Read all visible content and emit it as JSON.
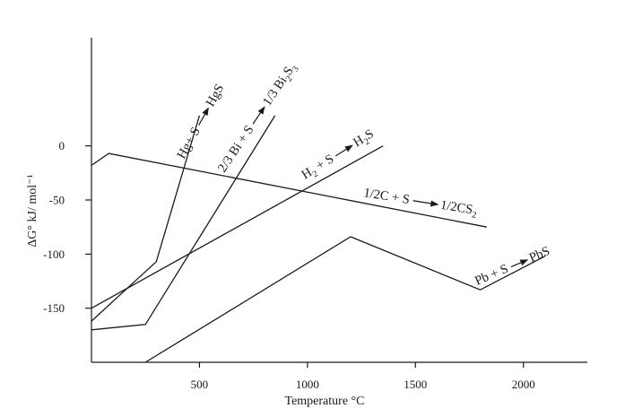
{
  "chart_data": {
    "type": "line",
    "xlabel": "Temperature °C",
    "ylabel": "ΔG° kJ/ mol⁻¹",
    "xlim": [
      0,
      2300
    ],
    "ylim": [
      -200,
      100
    ],
    "x_ticks": [
      500,
      1000,
      1500,
      2000
    ],
    "x_tick_labels": [
      "500",
      "1000",
      "1500",
      "2000"
    ],
    "y_ticks": [
      0,
      -50,
      -100,
      -150
    ],
    "y_tick_labels": [
      "0",
      "-50",
      "-100",
      "-150"
    ],
    "grid": false,
    "legend": "none",
    "series": [
      {
        "name": "Hg+ S → HgS",
        "label_parts": [
          [
            "Hg+ S",
            ""
          ],
          [
            "HgS",
            ""
          ]
        ],
        "points": [
          [
            0,
            -162
          ],
          [
            300,
            -107
          ],
          [
            500,
            28
          ]
        ]
      },
      {
        "name": "2/3 Bi + S → 1/3 Bi₂S₃",
        "label_parts": [
          [
            "2/3 Bi + S",
            ""
          ],
          [
            "1/3 Bi",
            ""
          ],
          [
            "2",
            "sub"
          ],
          [
            "S",
            ""
          ],
          [
            "3",
            "sub"
          ]
        ],
        "points": [
          [
            0,
            -170
          ],
          [
            250,
            -165
          ],
          [
            850,
            28
          ]
        ]
      },
      {
        "name": "H₂ + S → H₂S",
        "label_parts": [
          [
            "H",
            ""
          ],
          [
            "2",
            "sub"
          ],
          [
            " + S",
            ""
          ],
          [
            "H",
            ""
          ],
          [
            "2",
            "sub"
          ],
          [
            "S",
            ""
          ]
        ],
        "points": [
          [
            0,
            -150
          ],
          [
            1350,
            0
          ]
        ]
      },
      {
        "name": "1/2C + S → 1/2CS₂",
        "label_parts": [
          [
            "1/2C + S",
            ""
          ],
          [
            "1/2CS",
            ""
          ],
          [
            "2",
            "sub"
          ]
        ],
        "points": [
          [
            0,
            -18
          ],
          [
            80,
            -7
          ],
          [
            1830,
            -75
          ]
        ]
      },
      {
        "name": "Pb + S → PbS",
        "label_parts": [
          [
            "Pb + S",
            ""
          ],
          [
            "PbS",
            ""
          ]
        ],
        "points": [
          [
            250,
            -200
          ],
          [
            1200,
            -84
          ],
          [
            1800,
            -133
          ],
          [
            2100,
            -102
          ]
        ]
      }
    ]
  }
}
